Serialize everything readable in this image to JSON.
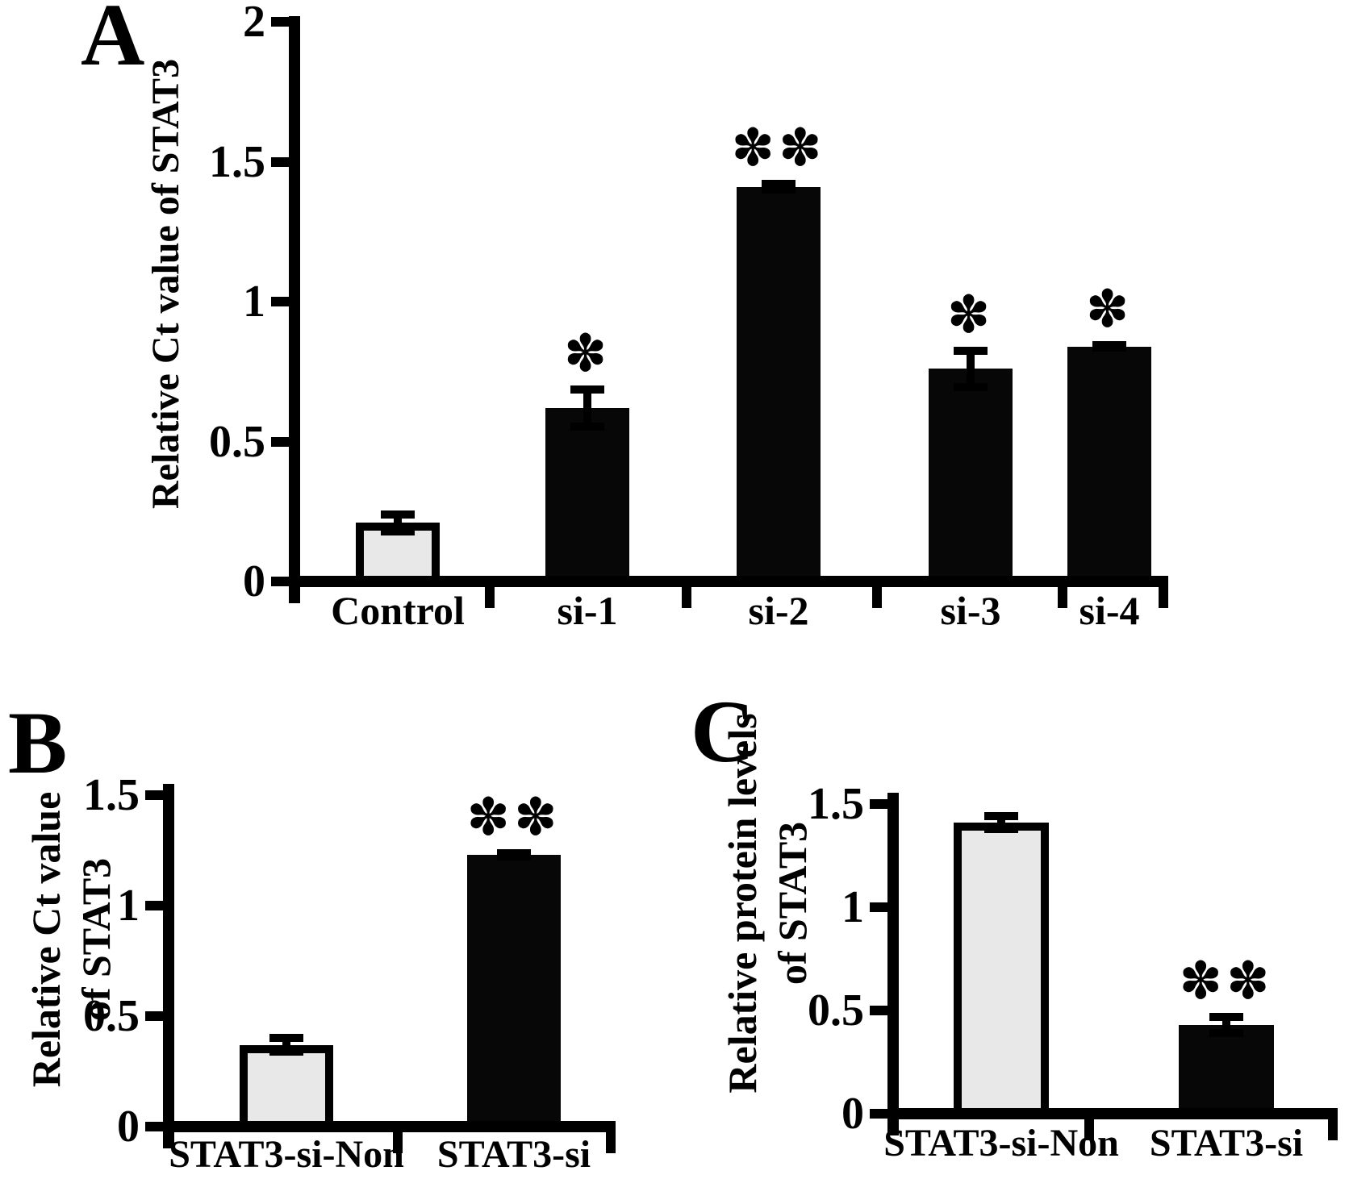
{
  "figure": {
    "description": "Three-panel bar figure of STAT3 knockdown experiments",
    "background_color": "#ffffff",
    "axis_color": "#000000",
    "light_bar_color": "#e8e8e8",
    "dark_bar_color": "#070707",
    "significance_symbols": {
      "single": "✽",
      "double": "✽✽"
    }
  },
  "chart_data": [
    {
      "type": "bar",
      "panel_label": "A",
      "title": "",
      "xlabel": "",
      "ylabel_lines": [
        "Relative Ct value of STAT3"
      ],
      "ylim": [
        0,
        2
      ],
      "ytick_labels": [
        "0",
        "0.5",
        "1",
        "1.5",
        "2"
      ],
      "grid": false,
      "legend": null,
      "categories": [
        "Control",
        "si-1",
        "si-2",
        "si-3",
        "si-4"
      ],
      "values": [
        0.21,
        0.62,
        1.41,
        0.76,
        0.84
      ],
      "errors": [
        0.045,
        0.08,
        0.025,
        0.08,
        0.02
      ],
      "bar_styles": [
        "light",
        "dark",
        "dark",
        "dark",
        "dark"
      ],
      "significance": [
        "",
        "*",
        "**",
        "*",
        "*"
      ]
    },
    {
      "type": "bar",
      "panel_label": "B",
      "title": "",
      "xlabel": "",
      "ylabel_lines": [
        "Relative Ct value",
        "of STAT3"
      ],
      "ylim": [
        0,
        1.5
      ],
      "ytick_labels": [
        "0",
        "0.5",
        "1",
        "1.5"
      ],
      "grid": false,
      "legend": null,
      "categories": [
        "STAT3-si-Non",
        "STAT3-si"
      ],
      "values": [
        0.37,
        1.23
      ],
      "errors": [
        0.05,
        0.025
      ],
      "bar_styles": [
        "light",
        "dark"
      ],
      "significance": [
        "",
        "**"
      ]
    },
    {
      "type": "bar",
      "panel_label": "C",
      "title": "",
      "xlabel": "",
      "ylabel_lines": [
        "Relative protein levels",
        "of STAT3"
      ],
      "ylim": [
        0,
        1.5
      ],
      "ytick_labels": [
        "0",
        "0.5",
        "1",
        "1.5"
      ],
      "grid": false,
      "legend": null,
      "categories": [
        "STAT3-si-Non",
        "STAT3-si"
      ],
      "values": [
        1.41,
        0.43
      ],
      "errors": [
        0.05,
        0.06
      ],
      "bar_styles": [
        "light",
        "dark"
      ],
      "significance": [
        "",
        "**"
      ]
    }
  ]
}
